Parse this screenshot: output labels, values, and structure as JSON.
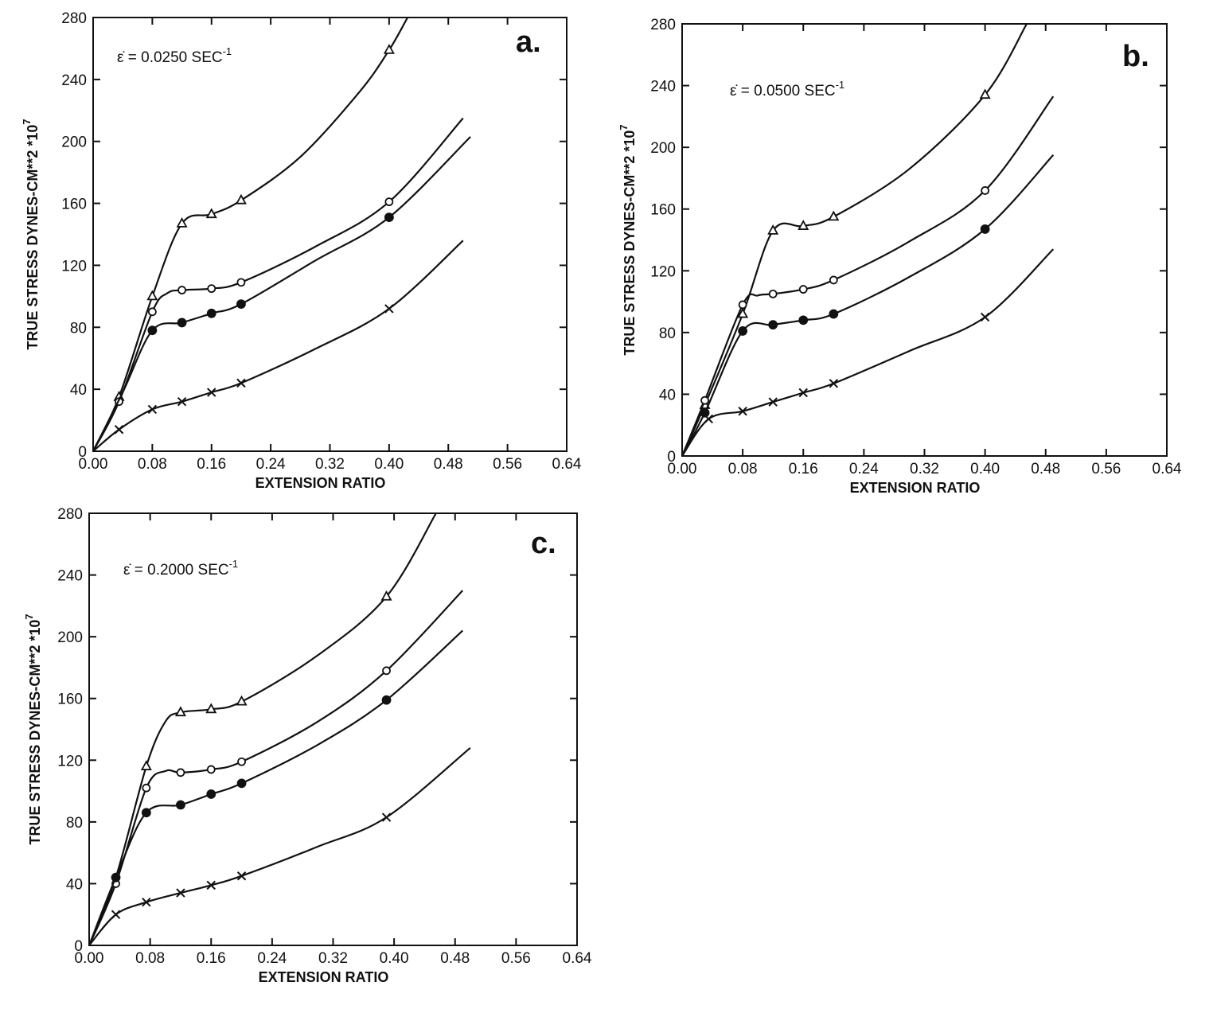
{
  "chart_data": [
    {
      "type": "line",
      "panel_label": "a.",
      "rate_label": {
        "prefix": "ε̇ = 0.0250 SEC",
        "exp": "-1"
      },
      "xlabel": "EXTENSION RATIO",
      "ylabel": {
        "text": "TRUE STRESS DYNES-CM**2 *10",
        "exp": "7"
      },
      "xlim": [
        0,
        0.64
      ],
      "ylim": [
        0,
        280
      ],
      "x_ticks": [
        "0.00",
        "0.08",
        "0.16",
        "0.24",
        "0.32",
        "0.40",
        "0.48",
        "0.56",
        "0.64"
      ],
      "y_ticks": [
        "0",
        "40",
        "80",
        "120",
        "160",
        "200",
        "240",
        "280"
      ],
      "grid": false,
      "series": [
        {
          "marker": "triangle",
          "points": [
            [
              0.035,
              35
            ],
            [
              0.08,
              100
            ],
            [
              0.12,
              147
            ],
            [
              0.16,
              153
            ],
            [
              0.2,
              162
            ],
            [
              0.4,
              259
            ]
          ],
          "curve": [
            [
              0,
              0
            ],
            [
              0.035,
              35
            ],
            [
              0.08,
              100
            ],
            [
              0.12,
              147
            ],
            [
              0.16,
              153
            ],
            [
              0.2,
              162
            ],
            [
              0.28,
              190
            ],
            [
              0.36,
              232
            ],
            [
              0.4,
              259
            ],
            [
              0.425,
              280
            ]
          ]
        },
        {
          "marker": "circle",
          "points": [
            [
              0.035,
              32
            ],
            [
              0.08,
              90
            ],
            [
              0.12,
              104
            ],
            [
              0.16,
              105
            ],
            [
              0.2,
              109
            ],
            [
              0.4,
              161
            ]
          ],
          "curve": [
            [
              0,
              0
            ],
            [
              0.035,
              32
            ],
            [
              0.08,
              90
            ],
            [
              0.1,
              102
            ],
            [
              0.12,
              104
            ],
            [
              0.16,
              105
            ],
            [
              0.2,
              109
            ],
            [
              0.3,
              132
            ],
            [
              0.4,
              161
            ],
            [
              0.5,
              215
            ]
          ]
        },
        {
          "marker": "dot",
          "points": [
            [
              0.08,
              78
            ],
            [
              0.12,
              83
            ],
            [
              0.16,
              89
            ],
            [
              0.2,
              95
            ],
            [
              0.4,
              151
            ]
          ],
          "curve": [
            [
              0,
              0
            ],
            [
              0.04,
              38
            ],
            [
              0.08,
              78
            ],
            [
              0.12,
              83
            ],
            [
              0.16,
              89
            ],
            [
              0.2,
              95
            ],
            [
              0.3,
              123
            ],
            [
              0.4,
              151
            ],
            [
              0.51,
              203
            ]
          ]
        },
        {
          "marker": "x",
          "points": [
            [
              0.035,
              14
            ],
            [
              0.08,
              27
            ],
            [
              0.12,
              32
            ],
            [
              0.16,
              38
            ],
            [
              0.2,
              44
            ],
            [
              0.4,
              92
            ]
          ],
          "curve": [
            [
              0,
              0
            ],
            [
              0.035,
              14
            ],
            [
              0.08,
              27
            ],
            [
              0.12,
              32
            ],
            [
              0.16,
              38
            ],
            [
              0.2,
              44
            ],
            [
              0.3,
              66
            ],
            [
              0.4,
              92
            ],
            [
              0.5,
              136
            ]
          ]
        }
      ]
    },
    {
      "type": "line",
      "panel_label": "b.",
      "rate_label": {
        "prefix": "ε̇ = 0.0500 SEC",
        "exp": "-1"
      },
      "xlabel": "EXTENSION RATIO",
      "ylabel": {
        "text": "TRUE STRESS DYNES-CM**2 *10",
        "exp": "7"
      },
      "xlim": [
        0,
        0.64
      ],
      "ylim": [
        0,
        280
      ],
      "x_ticks": [
        "0.00",
        "0.08",
        "0.16",
        "0.24",
        "0.32",
        "0.40",
        "0.48",
        "0.56",
        "0.64"
      ],
      "y_ticks": [
        "0",
        "40",
        "80",
        "120",
        "160",
        "200",
        "240",
        "280"
      ],
      "grid": false,
      "series": [
        {
          "marker": "triangle",
          "points": [
            [
              0.03,
              33
            ],
            [
              0.08,
              92
            ],
            [
              0.12,
              146
            ],
            [
              0.16,
              149
            ],
            [
              0.2,
              155
            ],
            [
              0.4,
              234
            ]
          ],
          "curve": [
            [
              0,
              0
            ],
            [
              0.03,
              33
            ],
            [
              0.08,
              92
            ],
            [
              0.12,
              146
            ],
            [
              0.16,
              149
            ],
            [
              0.2,
              155
            ],
            [
              0.3,
              186
            ],
            [
              0.4,
              234
            ],
            [
              0.455,
              280
            ]
          ]
        },
        {
          "marker": "circle",
          "points": [
            [
              0.03,
              36
            ],
            [
              0.08,
              98
            ],
            [
              0.12,
              105
            ],
            [
              0.16,
              108
            ],
            [
              0.2,
              114
            ],
            [
              0.4,
              172
            ]
          ],
          "curve": [
            [
              0,
              0
            ],
            [
              0.03,
              36
            ],
            [
              0.08,
              98
            ],
            [
              0.1,
              104
            ],
            [
              0.12,
              105
            ],
            [
              0.16,
              108
            ],
            [
              0.2,
              114
            ],
            [
              0.3,
              139
            ],
            [
              0.4,
              172
            ],
            [
              0.49,
              233
            ]
          ]
        },
        {
          "marker": "dot",
          "points": [
            [
              0.03,
              28
            ],
            [
              0.08,
              81
            ],
            [
              0.12,
              85
            ],
            [
              0.16,
              88
            ],
            [
              0.2,
              92
            ],
            [
              0.4,
              147
            ]
          ],
          "curve": [
            [
              0,
              0
            ],
            [
              0.03,
              28
            ],
            [
              0.08,
              81
            ],
            [
              0.12,
              85
            ],
            [
              0.16,
              88
            ],
            [
              0.2,
              92
            ],
            [
              0.3,
              116
            ],
            [
              0.4,
              147
            ],
            [
              0.49,
              195
            ]
          ]
        },
        {
          "marker": "x",
          "points": [
            [
              0.035,
              24
            ],
            [
              0.08,
              29
            ],
            [
              0.12,
              35
            ],
            [
              0.16,
              41
            ],
            [
              0.2,
              47
            ],
            [
              0.4,
              90
            ]
          ],
          "curve": [
            [
              0,
              0
            ],
            [
              0.035,
              24
            ],
            [
              0.08,
              29
            ],
            [
              0.12,
              35
            ],
            [
              0.16,
              41
            ],
            [
              0.2,
              47
            ],
            [
              0.3,
              68
            ],
            [
              0.4,
              90
            ],
            [
              0.49,
              134
            ]
          ]
        }
      ]
    },
    {
      "type": "line",
      "panel_label": "c.",
      "rate_label": {
        "prefix": "ε̇ = 0.2000 SEC",
        "exp": "-1"
      },
      "xlabel": "EXTENSION RATIO",
      "ylabel": {
        "text": "TRUE STRESS DYNES-CM**2 *10",
        "exp": "7"
      },
      "xlim": [
        0,
        0.64
      ],
      "ylim": [
        0,
        280
      ],
      "x_ticks": [
        "0.00",
        "0.08",
        "0.16",
        "0.24",
        "0.32",
        "0.40",
        "0.48",
        "0.56",
        "0.64"
      ],
      "y_ticks": [
        "0",
        "40",
        "80",
        "120",
        "160",
        "200",
        "240",
        "280"
      ],
      "grid": false,
      "series": [
        {
          "marker": "triangle",
          "points": [
            [
              0.075,
              116
            ],
            [
              0.12,
              151
            ],
            [
              0.16,
              153
            ],
            [
              0.2,
              158
            ],
            [
              0.39,
              226
            ]
          ],
          "curve": [
            [
              0,
              0
            ],
            [
              0.035,
              44
            ],
            [
              0.075,
              116
            ],
            [
              0.1,
              145
            ],
            [
              0.12,
              151
            ],
            [
              0.16,
              153
            ],
            [
              0.2,
              158
            ],
            [
              0.3,
              188
            ],
            [
              0.39,
              226
            ],
            [
              0.455,
              280
            ]
          ]
        },
        {
          "marker": "circle",
          "points": [
            [
              0.035,
              40
            ],
            [
              0.075,
              102
            ],
            [
              0.12,
              112
            ],
            [
              0.16,
              114
            ],
            [
              0.2,
              119
            ],
            [
              0.39,
              178
            ]
          ],
          "curve": [
            [
              0,
              0
            ],
            [
              0.035,
              40
            ],
            [
              0.075,
              102
            ],
            [
              0.1,
              113
            ],
            [
              0.12,
              112
            ],
            [
              0.16,
              114
            ],
            [
              0.2,
              119
            ],
            [
              0.3,
              145
            ],
            [
              0.39,
              178
            ],
            [
              0.49,
              230
            ]
          ]
        },
        {
          "marker": "dot",
          "points": [
            [
              0.035,
              44
            ],
            [
              0.075,
              86
            ],
            [
              0.12,
              91
            ],
            [
              0.16,
              98
            ],
            [
              0.2,
              105
            ],
            [
              0.39,
              159
            ]
          ],
          "curve": [
            [
              0,
              0
            ],
            [
              0.035,
              44
            ],
            [
              0.075,
              86
            ],
            [
              0.12,
              91
            ],
            [
              0.16,
              98
            ],
            [
              0.2,
              105
            ],
            [
              0.3,
              130
            ],
            [
              0.39,
              159
            ],
            [
              0.49,
              204
            ]
          ]
        },
        {
          "marker": "x",
          "points": [
            [
              0.035,
              20
            ],
            [
              0.075,
              28
            ],
            [
              0.12,
              34
            ],
            [
              0.16,
              39
            ],
            [
              0.2,
              45
            ],
            [
              0.39,
              83
            ]
          ],
          "curve": [
            [
              0,
              0
            ],
            [
              0.035,
              20
            ],
            [
              0.075,
              28
            ],
            [
              0.12,
              34
            ],
            [
              0.16,
              39
            ],
            [
              0.2,
              45
            ],
            [
              0.3,
              64
            ],
            [
              0.39,
              83
            ],
            [
              0.5,
              128
            ]
          ]
        }
      ]
    }
  ]
}
